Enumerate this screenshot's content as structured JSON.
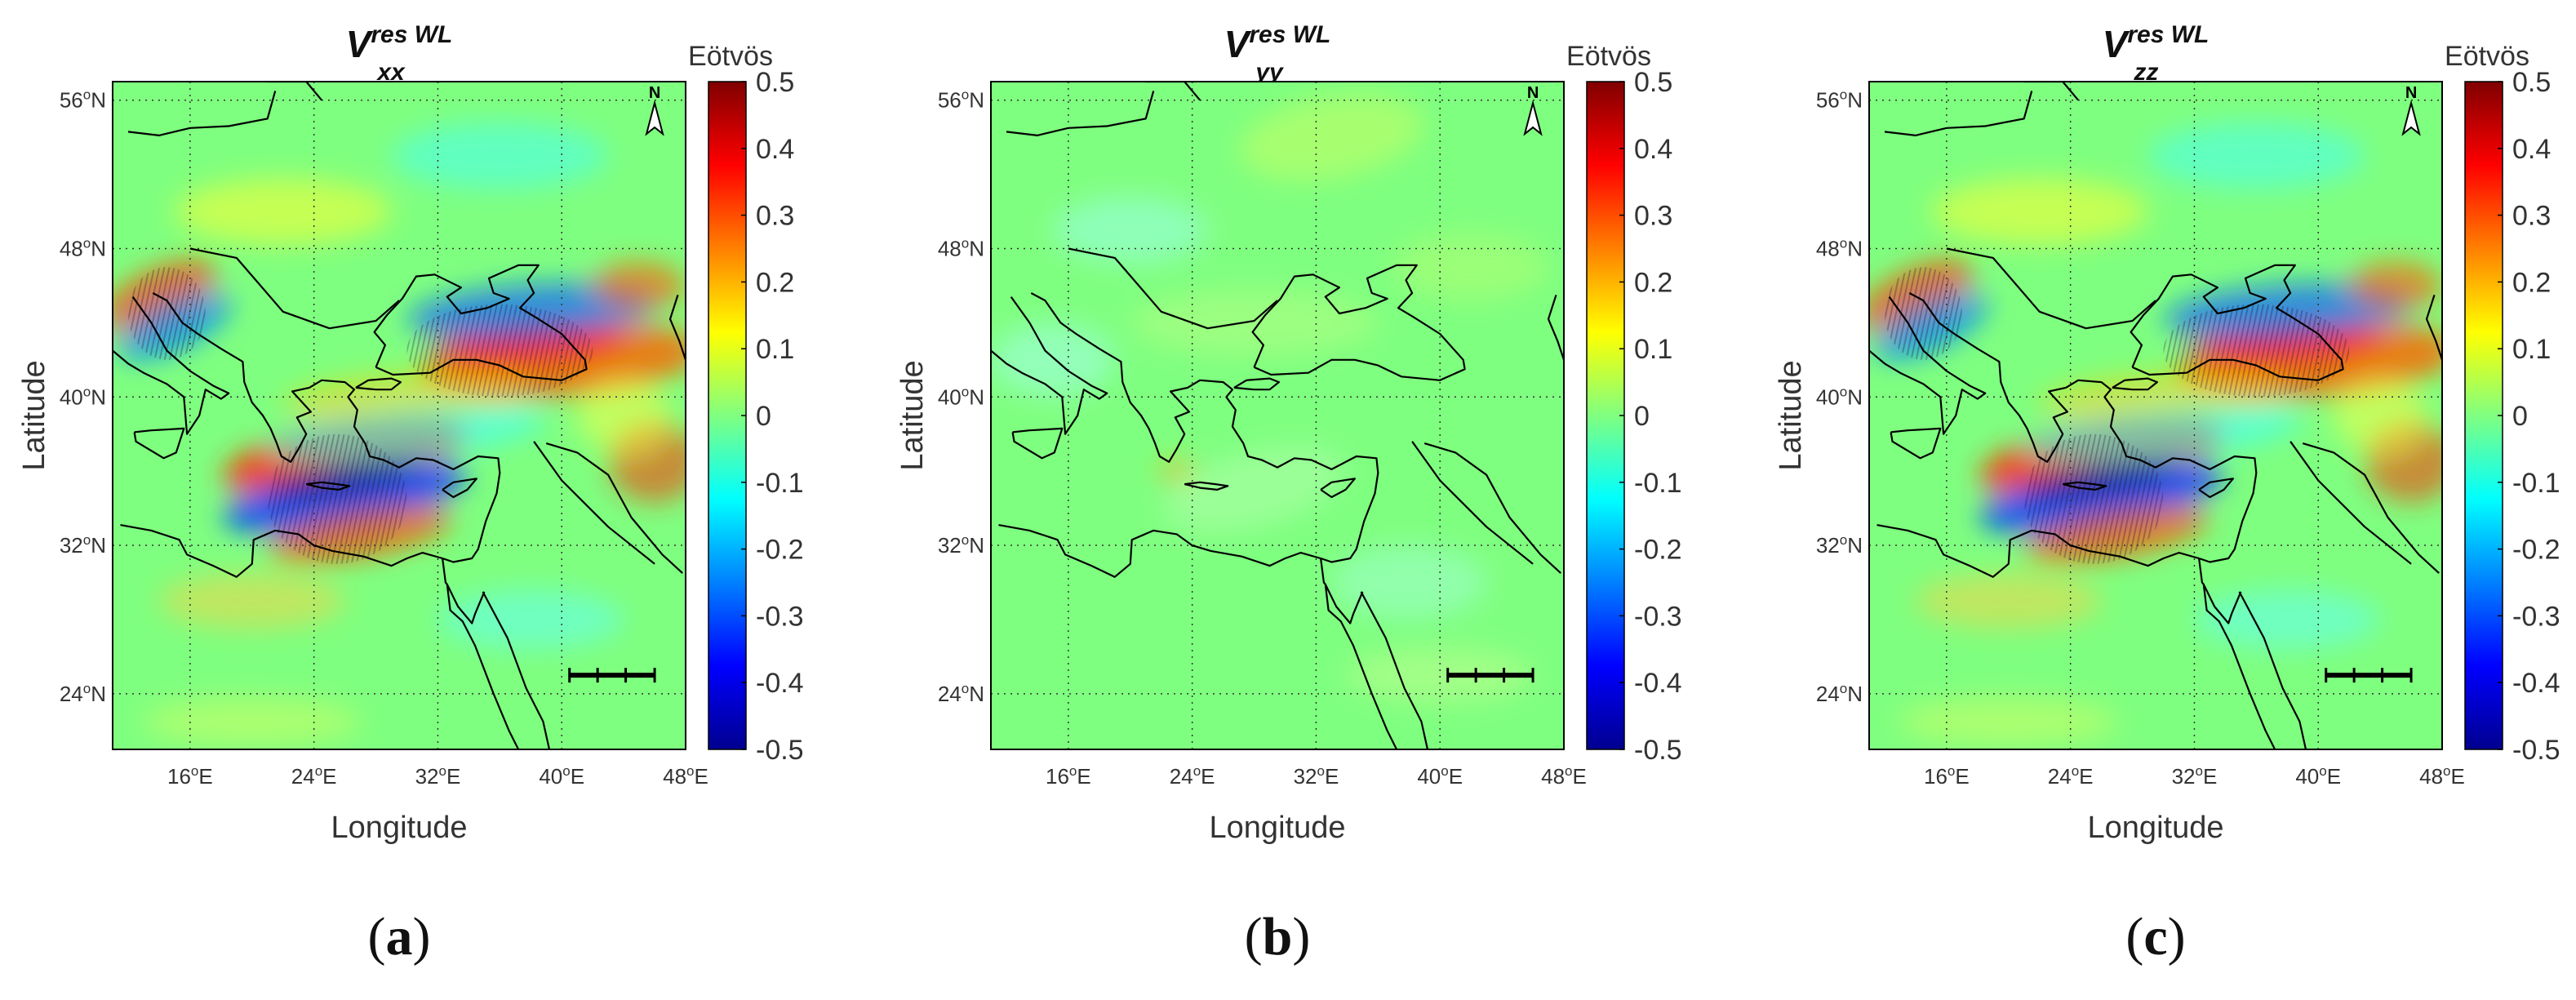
{
  "figure": {
    "colorbar": {
      "unit": "Eötvös",
      "ticks": [
        "0.5",
        "0.4",
        "0.3",
        "0.2",
        "0.1",
        "0",
        "-0.1",
        "-0.2",
        "-0.3",
        "-0.4",
        "-0.5"
      ],
      "range": [
        -0.5,
        0.5
      ],
      "colormap": [
        "#00008f",
        "#0000ff",
        "#0080ff",
        "#00ffff",
        "#80ff80",
        "#ffff00",
        "#ff8000",
        "#ff0000",
        "#800000"
      ]
    },
    "axes": {
      "xlabel": "Longitude",
      "ylabel": "Latitude",
      "xticks": [
        {
          "deg": "16",
          "suffix": "E"
        },
        {
          "deg": "24",
          "suffix": "E"
        },
        {
          "deg": "32",
          "suffix": "E"
        },
        {
          "deg": "40",
          "suffix": "E"
        },
        {
          "deg": "48",
          "suffix": "E"
        }
      ],
      "yticks": [
        {
          "deg": "56",
          "suffix": "N"
        },
        {
          "deg": "48",
          "suffix": "N"
        },
        {
          "deg": "40",
          "suffix": "N"
        },
        {
          "deg": "32",
          "suffix": "N"
        },
        {
          "deg": "24",
          "suffix": "N"
        }
      ],
      "lon_range": [
        11,
        48
      ],
      "lat_range": [
        21,
        57
      ]
    },
    "north_arrow": "N",
    "panels": [
      {
        "id": "a",
        "title_main": "V",
        "title_sup": "res WL",
        "title_sub": "xx",
        "caption": "a",
        "anomaly_strength": "strong"
      },
      {
        "id": "b",
        "title_main": "V",
        "title_sup": "res WL",
        "title_sub": "yy",
        "caption": "b",
        "anomaly_strength": "weak"
      },
      {
        "id": "c",
        "title_main": "V",
        "title_sup": "res WL",
        "title_sub": "zz",
        "caption": "c",
        "anomaly_strength": "strong"
      }
    ]
  }
}
